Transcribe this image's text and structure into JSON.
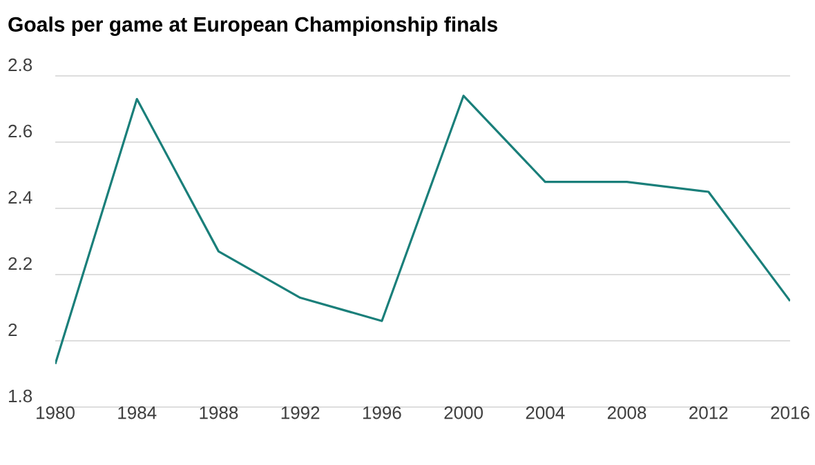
{
  "chart_data": {
    "type": "line",
    "title": "Goals per game at European Championship finals",
    "x": [
      1980,
      1984,
      1988,
      1992,
      1996,
      2000,
      2004,
      2008,
      2012,
      2016
    ],
    "values": [
      1.93,
      2.73,
      2.27,
      2.13,
      2.06,
      2.74,
      2.48,
      2.48,
      2.45,
      2.12
    ],
    "color": "#1a7f7a",
    "xlim": [
      1980,
      2016
    ],
    "xticks": [
      1980,
      1984,
      1988,
      1992,
      1996,
      2000,
      2004,
      2008,
      2012,
      2016
    ],
    "ylim": [
      1.8,
      2.8
    ],
    "yticks": [
      1.8,
      2,
      2.2,
      2.4,
      2.6,
      2.8
    ],
    "grid": "y"
  }
}
